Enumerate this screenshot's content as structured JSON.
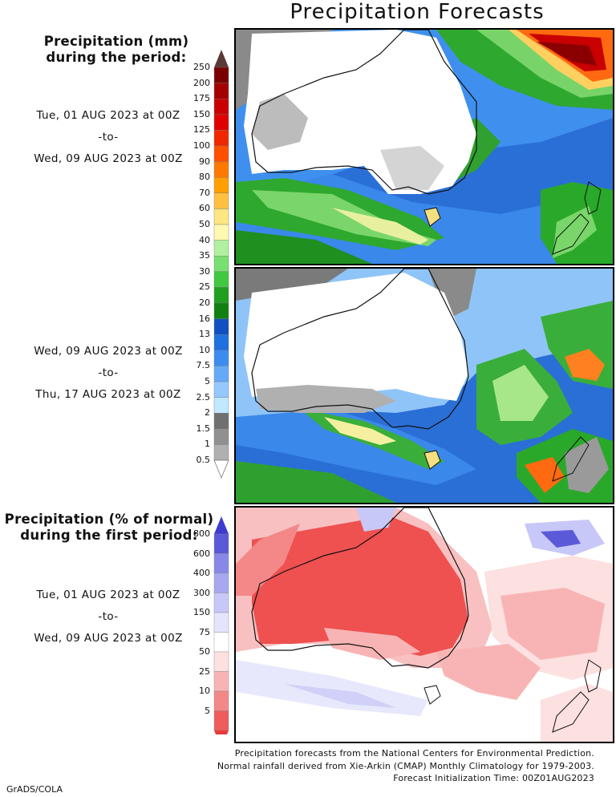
{
  "title": "Precipitation Forecasts",
  "section_mm": {
    "heading_line1": "Precipitation (mm)",
    "heading_line2": "during the period:",
    "period1": {
      "start": "Tue, 01 AUG 2023 at 00Z",
      "to": "-to-",
      "end": "Wed, 09 AUG 2023 at 00Z"
    },
    "period2": {
      "start": "Wed, 09 AUG 2023 at 00Z",
      "to": "-to-",
      "end": "Thu, 17 AUG 2023 at 00Z"
    },
    "colorbar_levels": [
      "250",
      "200",
      "175",
      "150",
      "125",
      "100",
      "90",
      "80",
      "70",
      "60",
      "50",
      "40",
      "35",
      "30",
      "25",
      "20",
      "16",
      "13",
      "10",
      "7.5",
      "5",
      "2.5",
      "2",
      "1.5",
      "1",
      "0.5"
    ],
    "colorbar_colors": [
      "#7a0000",
      "#a50000",
      "#c80000",
      "#e00000",
      "#f02800",
      "#ff5000",
      "#ff7800",
      "#ffa000",
      "#ffc040",
      "#ffe680",
      "#fff8b0",
      "#b0f0a0",
      "#78e070",
      "#40c840",
      "#20a020",
      "#108010",
      "#1050c0",
      "#2070e0",
      "#3c8cf0",
      "#64aaf8",
      "#96c8ff",
      "#c0e8ff",
      "#707070",
      "#909090",
      "#b0b0b0",
      "#d0d0d0"
    ],
    "colorbar_top_arrow": "#5a3a34"
  },
  "section_pct": {
    "heading_line1": "Precipitation (% of normal)",
    "heading_line2": "during the first period:",
    "period": {
      "start": "Tue, 01 AUG 2023 at 00Z",
      "to": "-to-",
      "end": "Wed, 09 AUG 2023 at 00Z"
    },
    "colorbar_levels": [
      "800",
      "600",
      "400",
      "300",
      "150",
      "75",
      "50",
      "25",
      "10",
      "5"
    ],
    "colorbar_colors": [
      "#5a5ad8",
      "#8888e8",
      "#a8a8f0",
      "#c8c8f8",
      "#e4e4fc",
      "#ffffff",
      "#fde0e0",
      "#f8b4b4",
      "#f48888",
      "#ef5c5c",
      "#e83a3a"
    ]
  },
  "credits": {
    "line1": "Precipitation forecasts from the National Centers for Environmental Prediction.",
    "line2": "Normal rainfall derived from Xie-Arkin (CMAP) Monthly Climatology for 1979-2003.",
    "line3": "Forecast Initialization Time: 00Z01AUG2023"
  },
  "footer_tag": "GrADS/COLA"
}
